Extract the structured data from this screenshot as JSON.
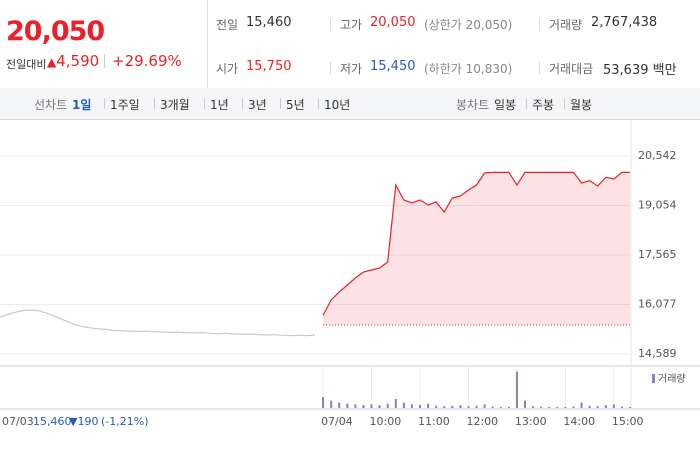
{
  "quote": {
    "price": "20,050",
    "change_label": "전일대비",
    "change": "4,590",
    "rate": "+29.69%",
    "rows": [
      [
        {
          "label": "전일",
          "value": "15,460"
        },
        {
          "label": "고가",
          "value": "20,050",
          "note": "(상한가 20,050)"
        },
        {
          "label": "거래량",
          "value": "2,767,438"
        }
      ],
      [
        {
          "label": "시가",
          "value": "15,750"
        },
        {
          "label": "저가",
          "value": "15,450",
          "note": "(하한가 10,830)"
        },
        {
          "label": "거래대금",
          "value": "53,639 백만"
        }
      ]
    ]
  },
  "tabs": {
    "line_label": "선차트",
    "line": [
      "1일",
      "1주일",
      "3개월",
      "1년",
      "3년",
      "5년",
      "10년"
    ],
    "candle_label": "봉차트",
    "candle": [
      "일봉",
      "주봉",
      "월봉"
    ]
  },
  "footer": {
    "price": "15,460",
    "change": "▼190",
    "rate": "(-1,21%)"
  },
  "chart_data": {
    "type": "line",
    "categories": [
      "07/03",
      null,
      null,
      null,
      null,
      null,
      null,
      null,
      null,
      null,
      null,
      null,
      null,
      null,
      null,
      null,
      null,
      null,
      null,
      null,
      null,
      null,
      null,
      null,
      null,
      null,
      null,
      null,
      null,
      null,
      null,
      null,
      null,
      null,
      null,
      null,
      null,
      null,
      null,
      null,
      "07/04",
      null,
      null,
      null,
      null,
      null,
      "10:00",
      null,
      null,
      null,
      null,
      null,
      "11:00",
      null,
      null,
      null,
      null,
      null,
      "12:00",
      null,
      null,
      null,
      null,
      null,
      "13:00",
      null,
      null,
      null,
      null,
      null,
      "14:00",
      null,
      null,
      null,
      null,
      null,
      "15:00",
      null,
      null
    ],
    "series": [
      {
        "color": "#c8c8c8",
        "values": [
          15700,
          15780,
          15850,
          15900,
          15910,
          15880,
          15800,
          15700,
          15600,
          15500,
          15420,
          15380,
          15350,
          15330,
          15300,
          15290,
          15280,
          15270,
          15280,
          15260,
          15250,
          15240,
          15250,
          15230,
          15220,
          15230,
          15210,
          15200,
          15210,
          15190,
          15180,
          15190,
          15170,
          15160,
          15170,
          15150,
          15140,
          15150,
          15140,
          15160,
          null,
          null,
          null,
          null,
          null,
          null,
          null,
          null,
          null,
          null,
          null,
          null,
          null,
          null,
          null,
          null,
          null,
          null,
          null,
          null,
          null,
          null,
          null,
          null,
          null,
          null,
          null,
          null,
          null,
          null,
          null,
          null,
          null,
          null,
          null,
          null,
          null,
          null,
          null
        ]
      },
      {
        "color": "#e8212b",
        "values": [
          null,
          null,
          null,
          null,
          null,
          null,
          null,
          null,
          null,
          null,
          null,
          null,
          null,
          null,
          null,
          null,
          null,
          null,
          null,
          null,
          null,
          null,
          null,
          null,
          null,
          null,
          null,
          null,
          null,
          null,
          null,
          null,
          null,
          null,
          null,
          null,
          null,
          null,
          null,
          null,
          15750,
          16212,
          16453,
          16663,
          16874,
          17054,
          17114,
          17175,
          17355,
          19670,
          19219,
          19129,
          19219,
          19069,
          19159,
          18858,
          19279,
          19339,
          19520,
          19670,
          20031,
          20050,
          20050,
          20050,
          19670,
          20050,
          20050,
          20050,
          20050,
          20050,
          20050,
          20050,
          19730,
          19800,
          19640,
          19900,
          19850,
          20050,
          20050
        ]
      },
      {
        "name": "거래량",
        "type": "bar",
        "axis": "y2",
        "color": "#8a7fc0",
        "values": [
          null,
          null,
          null,
          null,
          null,
          null,
          null,
          null,
          null,
          null,
          null,
          null,
          null,
          null,
          null,
          null,
          null,
          null,
          null,
          null,
          null,
          null,
          null,
          null,
          null,
          null,
          null,
          null,
          null,
          null,
          null,
          null,
          null,
          null,
          null,
          null,
          null,
          null,
          null,
          null,
          30,
          20,
          15,
          12,
          10,
          8,
          10,
          8,
          12,
          25,
          15,
          10,
          8,
          12,
          6,
          5,
          6,
          8,
          5,
          6,
          10,
          4,
          3,
          3,
          100,
          20,
          5,
          4,
          3,
          3,
          3,
          4,
          15,
          6,
          5,
          8,
          10,
          4,
          3
        ]
      }
    ],
    "baseline": 15460,
    "ylim": [
      14258,
      21474
    ],
    "yticks": [
      {
        "value": 14589,
        "label": "14,589"
      },
      {
        "value": 16077,
        "label": "16,077"
      },
      {
        "value": 17565,
        "label": "17,565"
      },
      {
        "value": 19054,
        "label": "19,054"
      },
      {
        "value": 20542,
        "label": "20,542"
      }
    ],
    "y2lim": [
      0,
      110
    ],
    "grid": true
  }
}
